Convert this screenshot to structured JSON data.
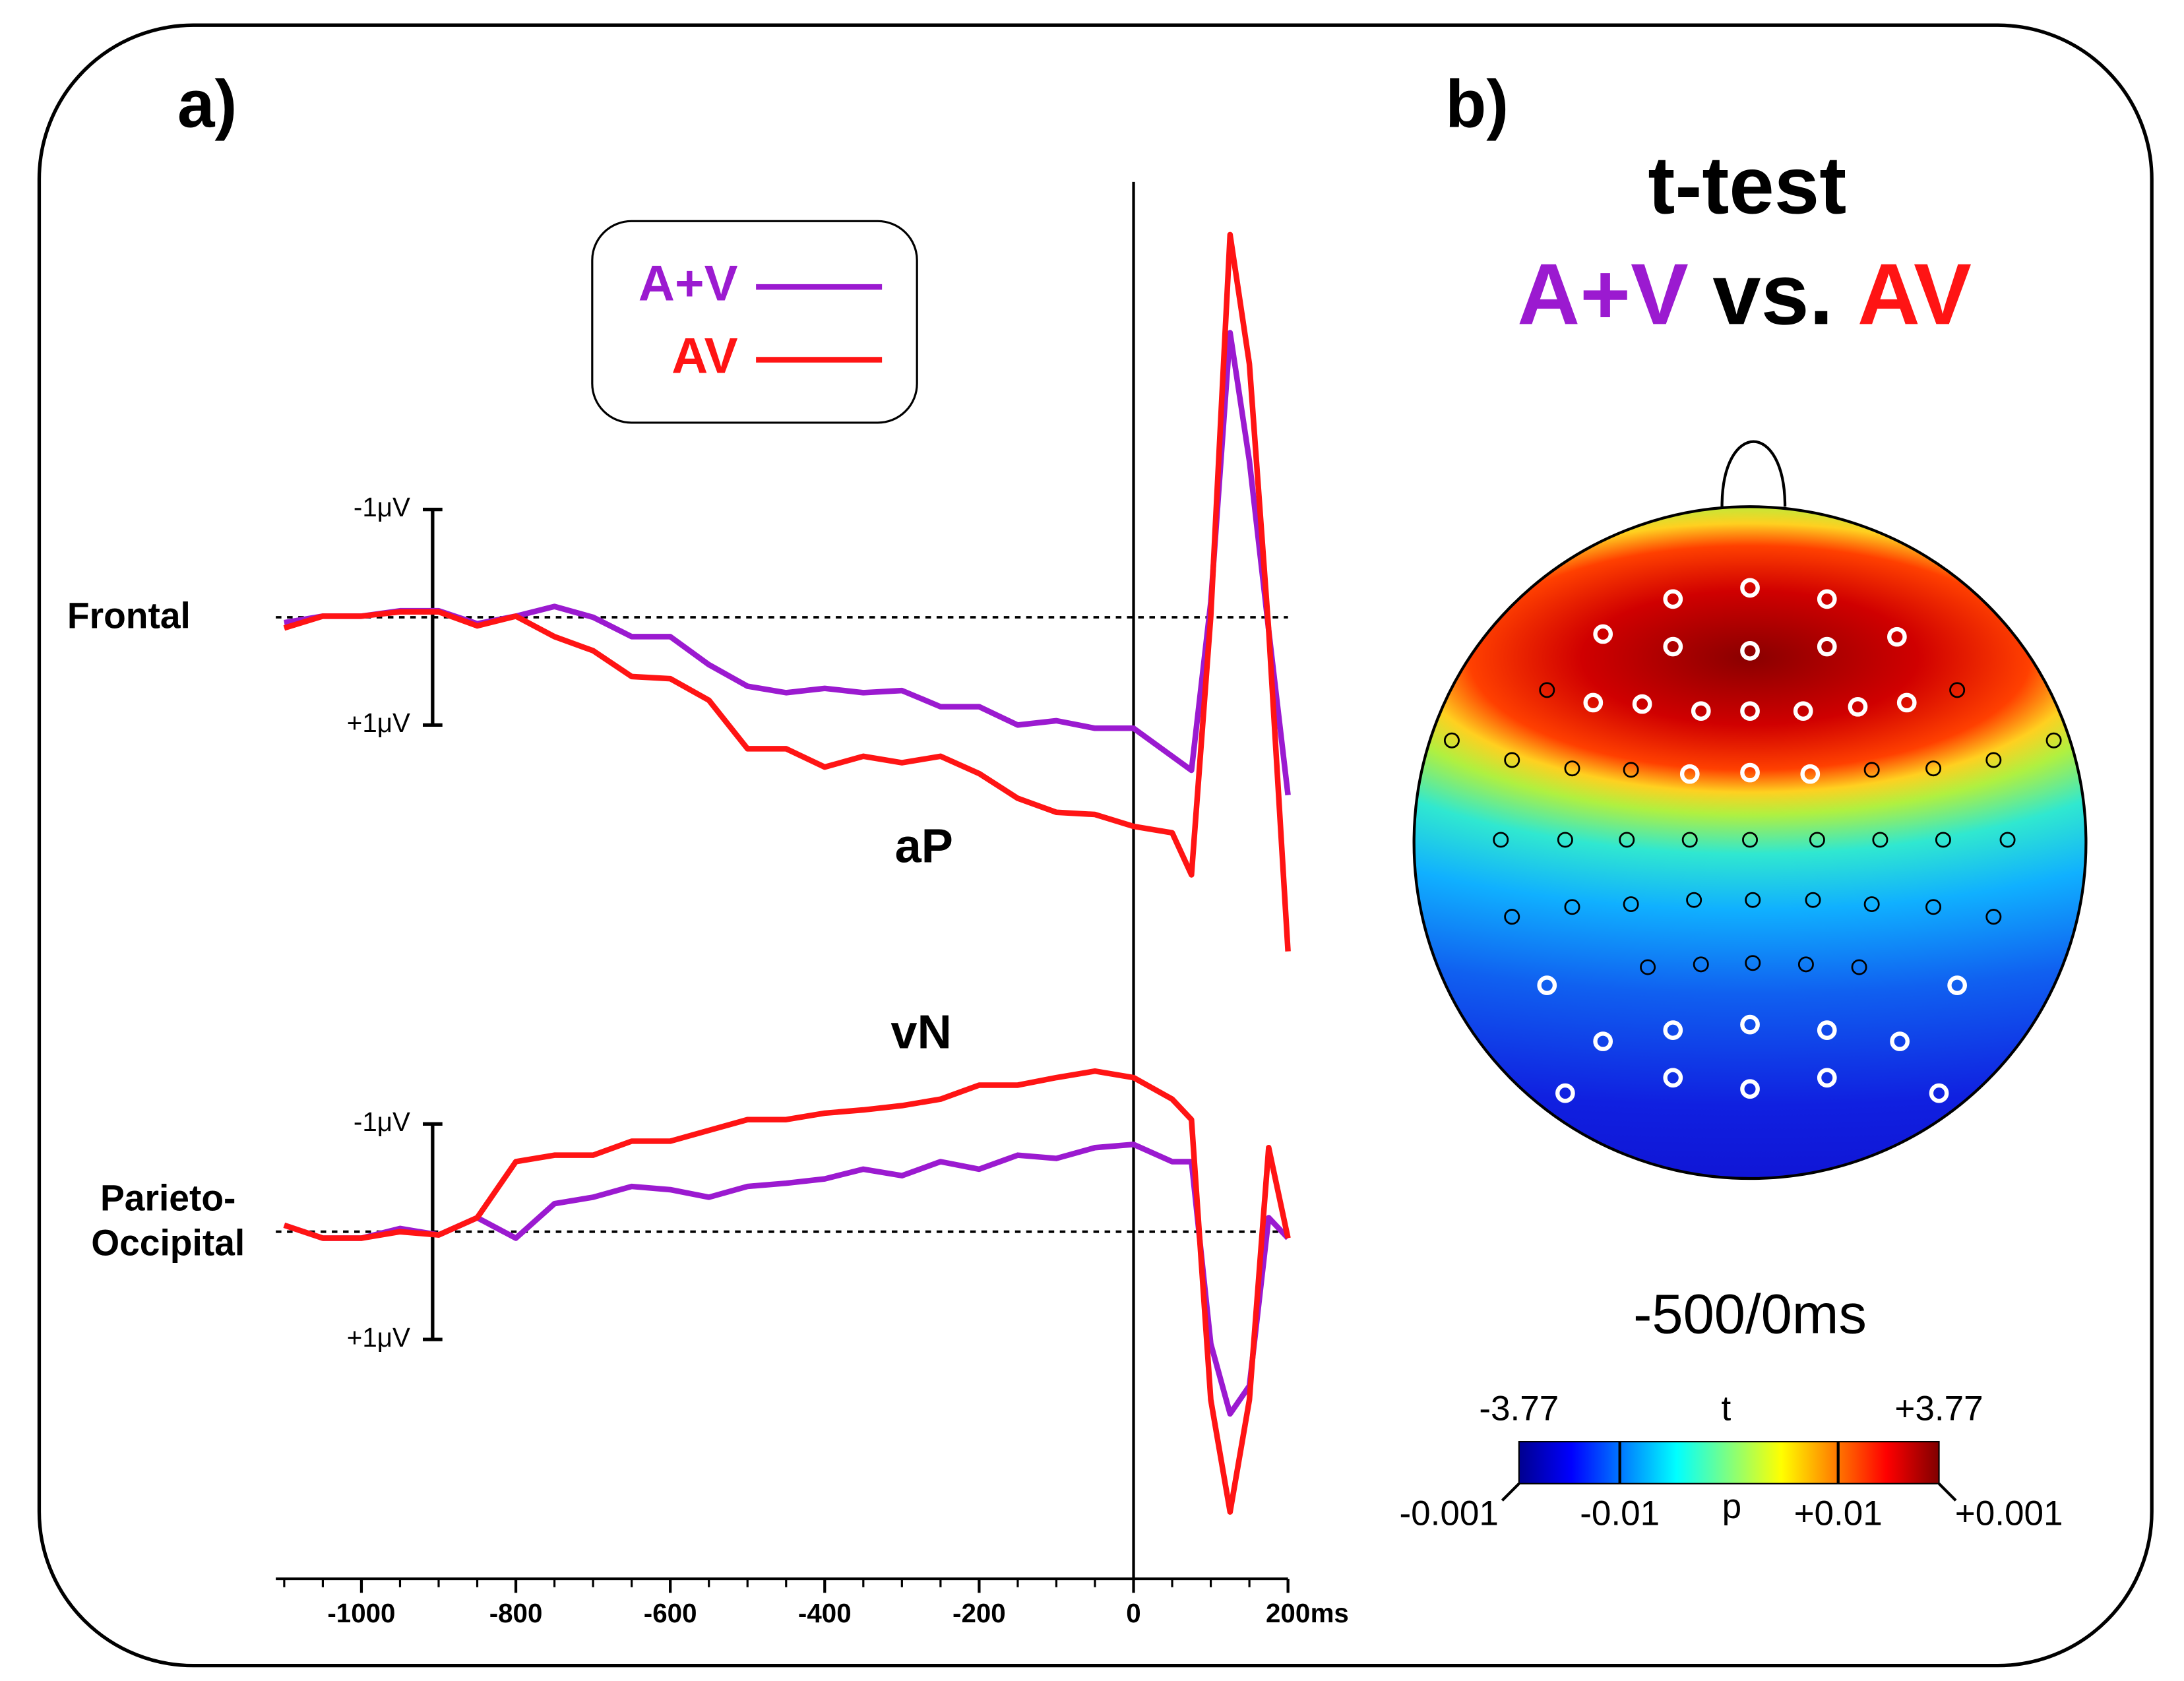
{
  "chart_data": [
    {
      "type": "line",
      "label": "a)",
      "series": [
        {
          "name": "A+V",
          "color": "#9b1ad0"
        },
        {
          "name": "AV",
          "color": "#ff1414"
        }
      ],
      "xlim": [
        -1100,
        200
      ],
      "xticks": [
        -1000,
        -800,
        -600,
        -400,
        -200,
        0,
        200
      ],
      "x_unit": "ms",
      "xminorticks": [
        -1100,
        -1050,
        -950,
        -900,
        -850,
        -750,
        -700,
        -650,
        -550,
        -500,
        -450,
        -350,
        -300,
        -250,
        -150,
        -100,
        -50,
        50,
        100,
        150
      ],
      "x": [
        -1100,
        -1050,
        -1000,
        -950,
        -900,
        -850,
        -800,
        -750,
        -700,
        -650,
        -600,
        -550,
        -500,
        -450,
        -400,
        -350,
        -300,
        -250,
        -200,
        -150,
        -100,
        -50,
        0,
        50,
        75,
        100,
        125,
        150,
        175,
        200
      ],
      "panels": [
        {
          "label_lines": [
            "Frontal"
          ],
          "annotation": "aP",
          "ylim": [
            -4.5,
            3.5
          ],
          "yticks": [
            {
              "value": -1,
              "label": "-1μV"
            },
            {
              "value": 1,
              "label": "+1μV"
            }
          ],
          "values": [
            [
              0.05,
              -0.01,
              -0.01,
              -0.06,
              -0.06,
              0.06,
              -0.01,
              -0.1,
              0.0,
              0.18,
              0.18,
              0.44,
              0.64,
              0.7,
              0.66,
              0.7,
              0.68,
              0.83,
              0.83,
              1.0,
              0.96,
              1.03,
              1.03,
              1.29,
              1.42,
              -0.14,
              -2.64,
              -1.45,
              0.12,
              1.65
            ],
            [
              0.1,
              -0.01,
              -0.01,
              -0.05,
              -0.05,
              0.08,
              -0.01,
              0.18,
              0.31,
              0.55,
              0.57,
              0.77,
              1.22,
              1.22,
              1.39,
              1.29,
              1.35,
              1.29,
              1.45,
              1.68,
              1.81,
              1.83,
              1.94,
              2.0,
              2.39,
              -0.01,
              -3.55,
              -2.35,
              0.12,
              3.1
            ]
          ]
        },
        {
          "label_lines": [
            "Parieto-",
            "Occipital"
          ],
          "annotation": "vN",
          "ylim": [
            -1.5,
            3
          ],
          "yticks": [
            {
              "value": -1,
              "label": "-1μV"
            },
            {
              "value": 1,
              "label": "+1μV"
            }
          ],
          "values": [
            [
              -0.06,
              0.06,
              0.06,
              -0.03,
              0.03,
              -0.13,
              0.06,
              -0.26,
              -0.32,
              -0.42,
              -0.39,
              -0.32,
              -0.42,
              -0.45,
              -0.49,
              -0.58,
              -0.52,
              -0.65,
              -0.58,
              -0.71,
              -0.68,
              -0.78,
              -0.81,
              -0.65,
              -0.65,
              1.04,
              1.69,
              1.43,
              -0.13,
              0.06
            ],
            [
              -0.06,
              0.06,
              0.06,
              0,
              0.03,
              -0.13,
              -0.65,
              -0.71,
              -0.71,
              -0.84,
              -0.84,
              -0.94,
              -1.04,
              -1.04,
              -1.1,
              -1.13,
              -1.17,
              -1.23,
              -1.36,
              -1.36,
              -1.43,
              -1.49,
              -1.43,
              -1.23,
              -1.04,
              1.56,
              2.6,
              1.56,
              -0.78,
              0.06
            ]
          ]
        }
      ]
    },
    {
      "type": "topomap",
      "label": "b)",
      "title": "t-test",
      "joiner": "vs.",
      "time_window": "-500/0ms",
      "colorbar": {
        "clim": [
          -3.77,
          3.77
        ],
        "t_label": "t",
        "p_label": "p",
        "tticks": [
          -3.77,
          {
            "value": 3.77,
            "label": "+3.77"
          }
        ],
        "pticks": [
          {
            "value": -3.77,
            "label": "-0.001"
          },
          {
            "value": -1.96,
            "label": "-0.01"
          },
          {
            "value": 1.96,
            "label": "+0.01"
          },
          {
            "value": 3.77,
            "label": "+0.001"
          }
        ]
      }
    }
  ]
}
